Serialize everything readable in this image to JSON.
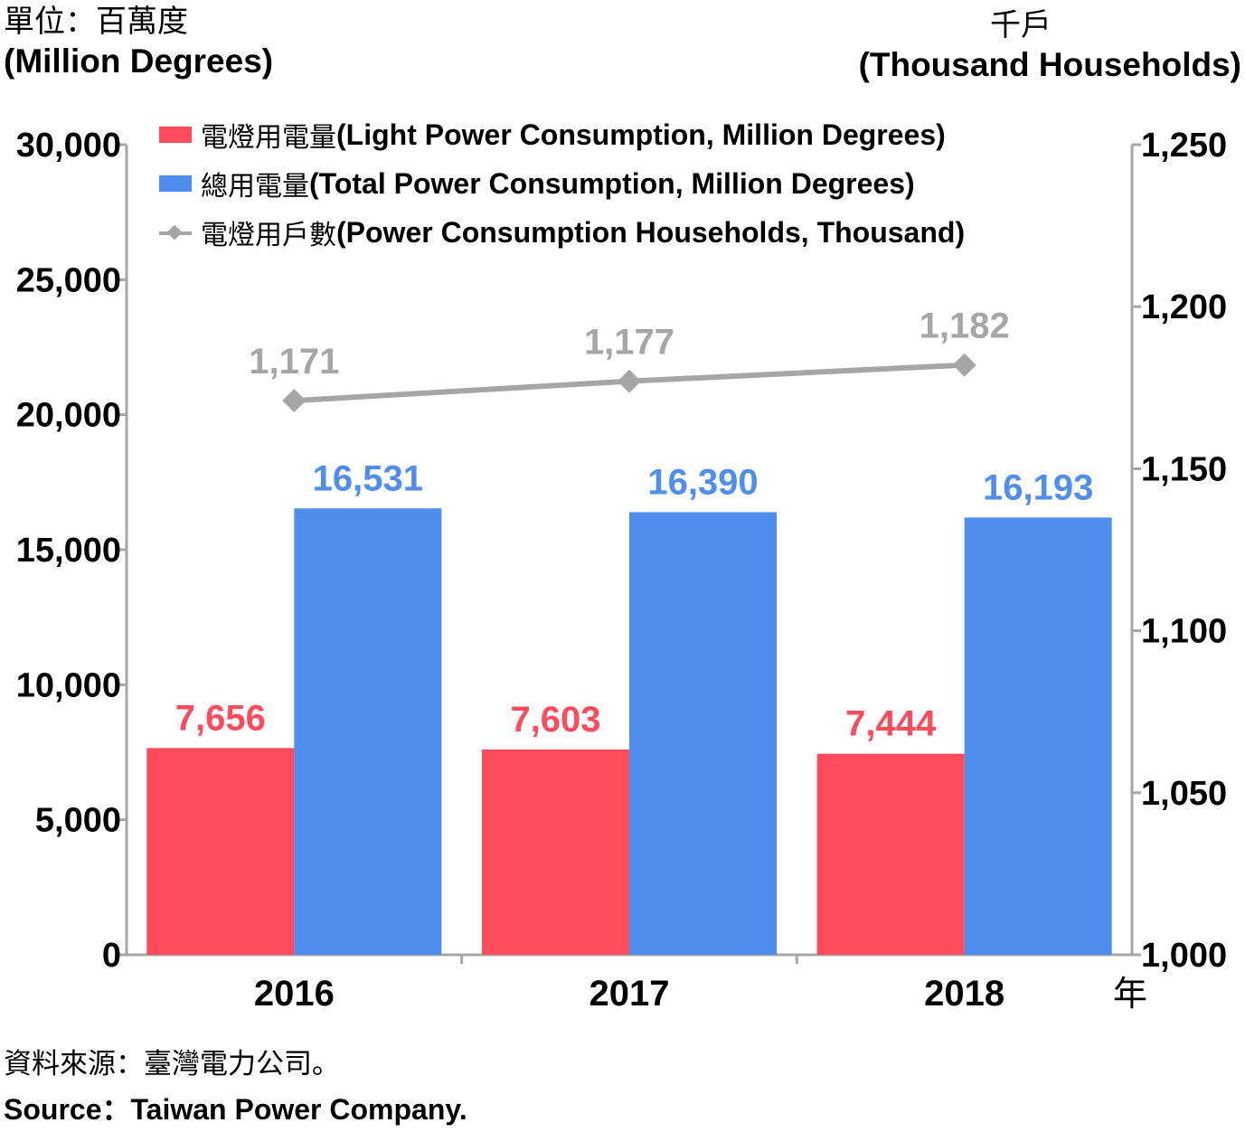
{
  "header": {
    "unit_left_zh": "單位：百萬度",
    "unit_left_en": "(Million Degrees)",
    "unit_right_zh": "千戶",
    "unit_right_en": "(Thousand Households)"
  },
  "footer": {
    "source_zh": "資料來源：臺灣電力公司。",
    "source_en": "Source：Taiwan Power Company."
  },
  "legend": {
    "light_zh": "電燈用電量",
    "light_en": "(Light Power Consumption, Million Degrees)",
    "total_zh": "總用電量",
    "total_en": "(Total Power Consumption, Million Degrees)",
    "households_zh": "電燈用戶數",
    "households_en": "(Power Consumption Households, Thousand)"
  },
  "colors": {
    "light": "#ff4b5c",
    "total": "#4f8def",
    "households": "#a6a6a6",
    "axis": "#a6a6a6"
  },
  "chart_data": {
    "type": "bar",
    "categories": [
      "2016",
      "2017",
      "2018"
    ],
    "xlabel": "年",
    "series": [
      {
        "name": "電燈用電量(Light Power Consumption, Million Degrees)",
        "values": [
          7656,
          7603,
          7444
        ],
        "labels": [
          "7,656",
          "7,603",
          "7,444"
        ],
        "axis": "left",
        "kind": "bar"
      },
      {
        "name": "總用電量(Total Power Consumption, Million Degrees)",
        "values": [
          16531,
          16390,
          16193
        ],
        "labels": [
          "16,531",
          "16,390",
          "16,193"
        ],
        "axis": "left",
        "kind": "bar"
      },
      {
        "name": "電燈用戶數(Power Consumption Households, Thousand)",
        "values": [
          1171,
          1177,
          1182
        ],
        "labels": [
          "1,171",
          "1,177",
          "1,182"
        ],
        "axis": "right",
        "kind": "line"
      }
    ],
    "y_left": {
      "min": 0,
      "max": 30000,
      "ticks": [
        0,
        5000,
        10000,
        15000,
        20000,
        25000,
        30000
      ],
      "tick_labels": [
        "0",
        "5,000",
        "10,000",
        "15,000",
        "20,000",
        "25,000",
        "30,000"
      ]
    },
    "y_right": {
      "min": 1000,
      "max": 1250,
      "ticks": [
        1000,
        1050,
        1100,
        1150,
        1200,
        1250
      ],
      "tick_labels": [
        "1,000",
        "1,050",
        "1,100",
        "1,150",
        "1,200",
        "1,250"
      ]
    },
    "grid": false,
    "legend_position": "top-left"
  }
}
